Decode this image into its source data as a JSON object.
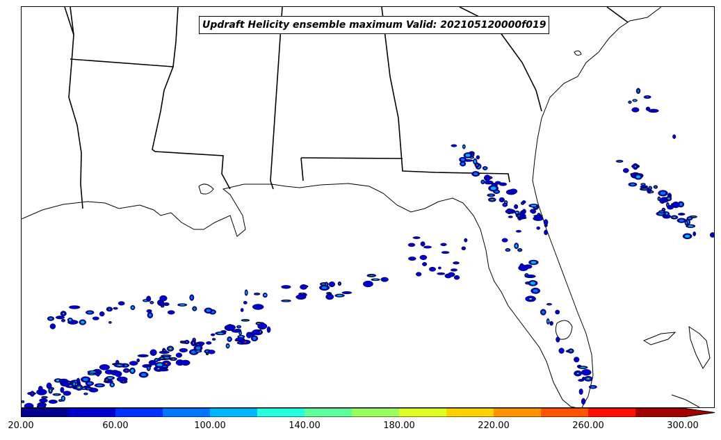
{
  "title": "Updraft Helicity ensemble maximum Valid: 202105120000f019",
  "colorbar": {
    "colors": [
      "#00008f",
      "#0000ce",
      "#0031ff",
      "#0075ff",
      "#00b7ff",
      "#24ffe0",
      "#60ff9c",
      "#9cff60",
      "#e0ff24",
      "#ffd100",
      "#ff9300",
      "#ff5400",
      "#ff1000",
      "#a30000"
    ],
    "extend": "max",
    "min": 20,
    "max": 300,
    "tick_labels": [
      "20.00",
      "60.00",
      "100.00",
      "140.00",
      "180.00",
      "220.00",
      "260.00",
      "300.00"
    ]
  },
  "map": {
    "region": "Gulf of Mexico / Southeastern United States",
    "features": [
      "coastline-outline",
      "state-borders"
    ],
    "field": "updraft-helicity-swaths"
  }
}
